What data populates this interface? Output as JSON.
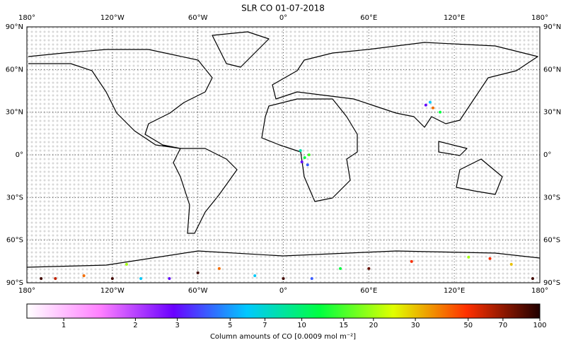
{
  "title": "SLR CO 01-07-2018",
  "map": {
    "lonlim": [
      -180,
      180
    ],
    "latlim": [
      -90,
      90
    ],
    "lonticks": [
      {
        "value": -180,
        "label": "180°"
      },
      {
        "value": -120,
        "label": "120°W"
      },
      {
        "value": -60,
        "label": "60°W"
      },
      {
        "value": 0,
        "label": "0°"
      },
      {
        "value": 60,
        "label": "60°E"
      },
      {
        "value": 120,
        "label": "120°E"
      },
      {
        "value": 180,
        "label": "180°"
      }
    ],
    "latticks": [
      {
        "value": 90,
        "label": "90°N"
      },
      {
        "value": 60,
        "label": "60°N"
      },
      {
        "value": 30,
        "label": "30°N"
      },
      {
        "value": 0,
        "label": "0°"
      },
      {
        "value": -30,
        "label": "30°S"
      },
      {
        "value": -60,
        "label": "60°S"
      },
      {
        "value": -90,
        "label": "90°S"
      }
    ],
    "grid": true,
    "points": [
      {
        "lon": 15,
        "lat": -2,
        "value": 12
      },
      {
        "lon": 18,
        "lat": 0,
        "value": 15
      },
      {
        "lon": 13,
        "lat": -5,
        "value": 3
      },
      {
        "lon": 17,
        "lat": -7,
        "value": 4
      },
      {
        "lon": 12,
        "lat": 3,
        "value": 8
      },
      {
        "lon": 100,
        "lat": 35,
        "value": 3
      },
      {
        "lon": 105,
        "lat": 33,
        "value": 40
      },
      {
        "lon": 110,
        "lat": 30,
        "value": 12
      },
      {
        "lon": 103,
        "lat": 37,
        "value": 6
      },
      {
        "lon": -170,
        "lat": -87,
        "value": 90
      },
      {
        "lon": -160,
        "lat": -87,
        "value": 60
      },
      {
        "lon": -140,
        "lat": -85,
        "value": 40
      },
      {
        "lon": -120,
        "lat": -87,
        "value": 90
      },
      {
        "lon": -110,
        "lat": -77,
        "value": 20
      },
      {
        "lon": -100,
        "lat": -87,
        "value": 6
      },
      {
        "lon": -80,
        "lat": -87,
        "value": 3
      },
      {
        "lon": -60,
        "lat": -83,
        "value": 90
      },
      {
        "lon": -45,
        "lat": -80,
        "value": 40
      },
      {
        "lon": -20,
        "lat": -85,
        "value": 6
      },
      {
        "lon": 0,
        "lat": -87,
        "value": 90
      },
      {
        "lon": 20,
        "lat": -87,
        "value": 4
      },
      {
        "lon": 40,
        "lat": -80,
        "value": 12
      },
      {
        "lon": 60,
        "lat": -80,
        "value": 80
      },
      {
        "lon": 90,
        "lat": -75,
        "value": 50
      },
      {
        "lon": 130,
        "lat": -72,
        "value": 20
      },
      {
        "lon": 145,
        "lat": -73,
        "value": 50
      },
      {
        "lon": 160,
        "lat": -77,
        "value": 30
      },
      {
        "lon": 175,
        "lat": -87,
        "value": 90
      }
    ]
  },
  "colorbar": {
    "label": "Column amounts of CO [0.0009 mol m⁻²]",
    "log": true,
    "lim": [
      0.7,
      100
    ],
    "ticks": [
      1,
      2,
      3,
      5,
      7,
      10,
      15,
      20,
      30,
      50,
      70,
      100
    ],
    "colormap": [
      "#ffffff",
      "#ff80ff",
      "#6a00ff",
      "#00c8ff",
      "#00ff40",
      "#e0ff00",
      "#ff3000",
      "#200000"
    ]
  }
}
